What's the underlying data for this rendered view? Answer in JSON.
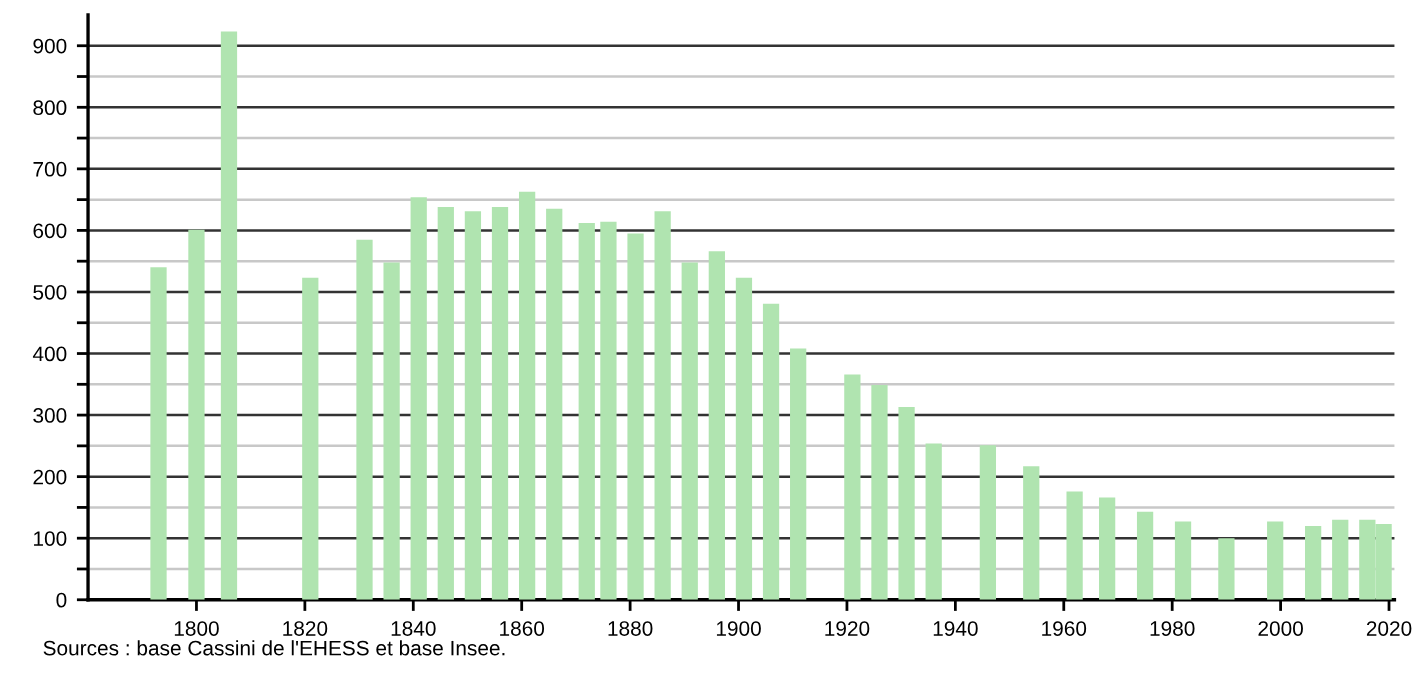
{
  "chart_data": {
    "type": "bar",
    "x": [
      1793,
      1800,
      1806,
      1821,
      1831,
      1836,
      1841,
      1846,
      1851,
      1856,
      1861,
      1866,
      1872,
      1876,
      1881,
      1886,
      1891,
      1896,
      1901,
      1906,
      1911,
      1921,
      1926,
      1931,
      1936,
      1946,
      1954,
      1962,
      1968,
      1975,
      1982,
      1990,
      1999,
      2006,
      2011,
      2016,
      2019
    ],
    "values": [
      540,
      601,
      923,
      523,
      585,
      548,
      654,
      638,
      631,
      638,
      663,
      635,
      612,
      614,
      595,
      631,
      548,
      566,
      523,
      481,
      408,
      366,
      349,
      313,
      254,
      251,
      217,
      176,
      166,
      143,
      127,
      100,
      127,
      120,
      130,
      130,
      123
    ],
    "color": "#b0e4b0",
    "xlim": [
      1780,
      2021
    ],
    "xticks": [
      1800,
      1820,
      1840,
      1860,
      1880,
      1900,
      1920,
      1940,
      1960,
      1980,
      2000,
      2020
    ],
    "ylim": [
      0,
      950
    ],
    "yticks": [
      0,
      {
        "value": 50,
        "label": null
      },
      100,
      {
        "value": 150,
        "label": null
      },
      200,
      {
        "value": 250,
        "label": null
      },
      300,
      {
        "value": 350,
        "label": null
      },
      400,
      {
        "value": 450,
        "label": null
      },
      500,
      {
        "value": 550,
        "label": null
      },
      600,
      {
        "value": 650,
        "label": null
      },
      700,
      {
        "value": 750,
        "label": null
      },
      800,
      {
        "value": 850,
        "label": null
      },
      900
    ],
    "grid": "y",
    "annotations": [
      "Sources : base Cassini de l'EHESS et base Insee."
    ]
  }
}
